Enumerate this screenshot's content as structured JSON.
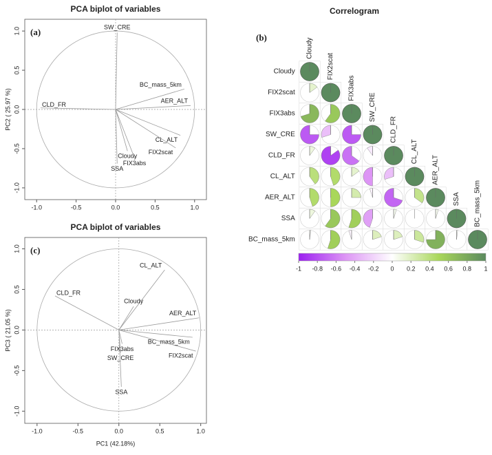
{
  "chart_data": [
    {
      "type": "biplot",
      "title": "PCA biplot of variables",
      "panel_label": "(a)",
      "y_label": "PC2 ( 25.97 %)",
      "xlim": [
        -1.15,
        1.15
      ],
      "ylim": [
        -1.15,
        1.15
      ],
      "xticks": [
        {
          "value": -1,
          "label": "-1.0"
        },
        {
          "value": -0.5,
          "label": "-0.5"
        },
        {
          "value": 0,
          "label": "0.0"
        },
        {
          "value": 0.5,
          "label": "0.5"
        },
        {
          "value": 1,
          "label": "1.0"
        }
      ],
      "yticks": [
        {
          "value": -1,
          "label": "-1.0"
        },
        {
          "value": -0.5,
          "label": "-0.5"
        },
        {
          "value": 0,
          "label": "0.0"
        },
        {
          "value": 0.5,
          "label": "0.5"
        },
        {
          "value": 1,
          "label": "1.0"
        }
      ],
      "variables": [
        {
          "name": "SW_CRE",
          "x": 0.02,
          "y": 0.98,
          "color": "#222222"
        },
        {
          "name": "BC_mass_5km",
          "x": 0.87,
          "y": 0.26,
          "color": "#222222"
        },
        {
          "name": "AER_ALT",
          "x": 0.95,
          "y": 0.05,
          "color": "#222222"
        },
        {
          "name": "CLD_FR",
          "x": -0.95,
          "y": 0.02,
          "color": "#222222"
        },
        {
          "name": "CL_ALT",
          "x": 0.82,
          "y": -0.33,
          "color": "#222222"
        },
        {
          "name": "FIX2scat",
          "x": 0.76,
          "y": -0.49,
          "color": "#2a3fb0"
        },
        {
          "name": "Cloudy",
          "x": 0.15,
          "y": -0.53,
          "color": "#2a3fb0"
        },
        {
          "name": "FIX3abs",
          "x": 0.24,
          "y": -0.62,
          "color": "#2a3fb0"
        },
        {
          "name": "SSA",
          "x": 0.02,
          "y": -0.69,
          "color": "#222222"
        }
      ]
    },
    {
      "type": "correlogram",
      "title": "Correlogram",
      "panel_label": "(b)",
      "variables": [
        "Cloudy",
        "FIX2scat",
        "FIX3abs",
        "SW_CRE",
        "CLD_FR",
        "CL_ALT",
        "AER_ALT",
        "SSA",
        "BC_mass_5km"
      ],
      "values": [
        [
          1
        ],
        [
          0.15,
          1
        ],
        [
          0.7,
          0.6,
          1
        ],
        [
          -0.75,
          -0.3,
          -0.75,
          1
        ],
        [
          0.1,
          -0.85,
          -0.65,
          -0.1,
          1
        ],
        [
          0.4,
          0.45,
          0.15,
          -0.5,
          -0.3,
          1
        ],
        [
          0.45,
          0.5,
          0.25,
          -0.05,
          -0.7,
          0.35,
          1
        ],
        [
          0.1,
          0.6,
          0.55,
          -0.45,
          0.05,
          0.0,
          0.05,
          1
        ],
        [
          0.02,
          0.55,
          -0.05,
          0.2,
          0.2,
          0.3,
          0.75,
          0.02,
          1
        ]
      ],
      "colormap": [
        "#9b1ff0",
        "#dd95f5",
        "#ffffff",
        "#a9d75a",
        "#5b8a5e"
      ],
      "clim": [
        -1,
        1
      ],
      "cticks": [
        -1,
        -0.8,
        -0.6,
        -0.4,
        -0.2,
        0,
        0.2,
        0.4,
        0.6,
        0.8,
        1
      ]
    },
    {
      "type": "biplot",
      "title": "PCA biplot of variables",
      "panel_label": "(c)",
      "x_label": "PC1 (42.18%)",
      "y_label": "PC3 ( 21.05 %)",
      "xlim": [
        -1.15,
        1.07
      ],
      "ylim": [
        -1.15,
        1.14
      ],
      "xticks": [
        {
          "value": -1,
          "label": "-1.0"
        },
        {
          "value": -0.5,
          "label": "-0.5"
        },
        {
          "value": 0,
          "label": "0.0"
        },
        {
          "value": 0.5,
          "label": "0.5"
        },
        {
          "value": 1,
          "label": "1.0"
        }
      ],
      "yticks": [
        {
          "value": -1,
          "label": "-1.0"
        },
        {
          "value": -0.5,
          "label": "-0.5"
        },
        {
          "value": 0,
          "label": "0.0"
        },
        {
          "value": 0.5,
          "label": "0.5"
        },
        {
          "value": 1,
          "label": "1.0"
        }
      ],
      "variables": [
        {
          "name": "CL_ALT",
          "x": 0.56,
          "y": 0.74,
          "color": "#222222"
        },
        {
          "name": "CLD_FR",
          "x": -0.78,
          "y": 0.42,
          "color": "#222222"
        },
        {
          "name": "Cloudy",
          "x": 0.18,
          "y": 0.29,
          "color": "#2a3fb0"
        },
        {
          "name": "AER_ALT",
          "x": 0.98,
          "y": 0.15,
          "color": "#222222"
        },
        {
          "name": "BC_mass_5km",
          "x": 0.9,
          "y": -0.09,
          "color": "#222222"
        },
        {
          "name": "FIX3abs",
          "x": 0.04,
          "y": -0.17,
          "color": "#2a3fb0"
        },
        {
          "name": "SW_CRE",
          "x": 0.02,
          "y": -0.28,
          "color": "#222222"
        },
        {
          "name": "FIX2scat",
          "x": 0.94,
          "y": -0.26,
          "color": "#2a3fb0"
        },
        {
          "name": "SSA",
          "x": 0.03,
          "y": -0.7,
          "color": "#222222"
        }
      ]
    }
  ]
}
